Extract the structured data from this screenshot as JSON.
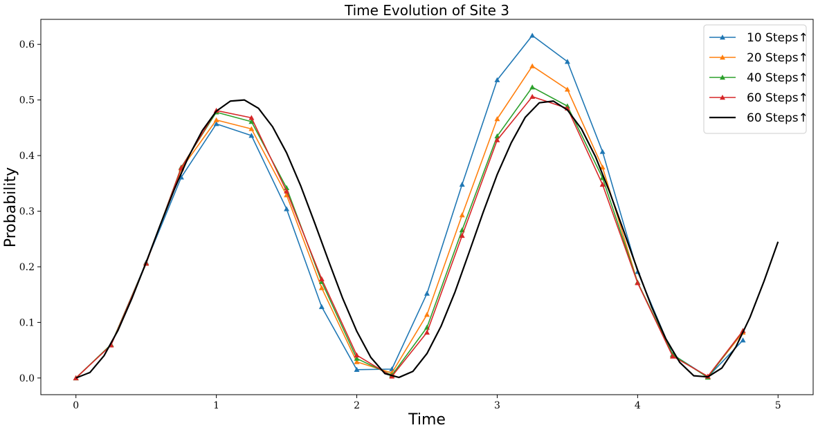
{
  "chart_data": {
    "type": "line",
    "title": "Time Evolution of Site 3",
    "xlabel": "Time",
    "ylabel": "Probability",
    "xlim": [
      -0.25,
      5.25
    ],
    "ylim": [
      -0.03,
      0.645
    ],
    "xticks": [
      0,
      1,
      2,
      3,
      4,
      5
    ],
    "xtick_labels": [
      "0",
      "1",
      "2",
      "3",
      "4",
      "5"
    ],
    "yticks": [
      0.0,
      0.1,
      0.2,
      0.3,
      0.4,
      0.5,
      0.6
    ],
    "ytick_labels": [
      "0.0",
      "0.1",
      "0.2",
      "0.3",
      "0.4",
      "0.5",
      "0.6"
    ],
    "grid": false,
    "legend_position": "top-right",
    "x": [
      0,
      0.25,
      0.5,
      0.75,
      1.0,
      1.25,
      1.5,
      1.75,
      2.0,
      2.25,
      2.5,
      2.75,
      3.0,
      3.25,
      3.5,
      3.75,
      4.0,
      4.25,
      4.5,
      4.75
    ],
    "series": [
      {
        "name": "10 Steps↑",
        "color": "#1f77b4",
        "marker": "triangle",
        "values": [
          0.0,
          0.06,
          0.208,
          0.361,
          0.457,
          0.436,
          0.304,
          0.128,
          0.015,
          0.016,
          0.152,
          0.348,
          0.536,
          0.616,
          0.569,
          0.407,
          0.191,
          0.042,
          0.002,
          0.068
        ]
      },
      {
        "name": "20 Steps↑",
        "color": "#ff7f0e",
        "marker": "triangle",
        "values": [
          0.0,
          0.06,
          0.207,
          0.376,
          0.464,
          0.448,
          0.329,
          0.162,
          0.029,
          0.009,
          0.114,
          0.293,
          0.466,
          0.561,
          0.519,
          0.379,
          0.172,
          0.04,
          0.002,
          0.082
        ]
      },
      {
        "name": "40 Steps↑",
        "color": "#2ca02c",
        "marker": "triangle",
        "values": [
          0.0,
          0.06,
          0.206,
          0.379,
          0.478,
          0.461,
          0.342,
          0.173,
          0.035,
          0.005,
          0.091,
          0.266,
          0.435,
          0.523,
          0.489,
          0.36,
          0.172,
          0.042,
          0.001,
          0.085
        ]
      },
      {
        "name": "60 Steps↑",
        "color": "#d62728",
        "marker": "triangle",
        "values": [
          0.0,
          0.059,
          0.206,
          0.378,
          0.481,
          0.468,
          0.336,
          0.178,
          0.041,
          0.003,
          0.082,
          0.256,
          0.428,
          0.506,
          0.485,
          0.348,
          0.171,
          0.039,
          0.003,
          0.085
        ]
      },
      {
        "name": "60 Steps↑",
        "color": "#000000",
        "marker": "none",
        "smooth": true,
        "x": [
          0,
          0.1,
          0.2,
          0.3,
          0.4,
          0.5,
          0.6,
          0.7,
          0.8,
          0.9,
          1.0,
          1.1,
          1.2,
          1.3,
          1.4,
          1.5,
          1.6,
          1.7,
          1.8,
          1.9,
          2.0,
          2.1,
          2.2,
          2.3,
          2.4,
          2.5,
          2.6,
          2.7,
          2.8,
          2.9,
          3.0,
          3.1,
          3.2,
          3.3,
          3.4,
          3.5,
          3.6,
          3.7,
          3.8,
          3.9,
          4.0,
          4.1,
          4.2,
          4.3,
          4.4,
          4.5,
          4.6,
          4.7,
          4.8,
          4.9,
          5.0
        ],
        "values": [
          0.0,
          0.01,
          0.04,
          0.086,
          0.144,
          0.208,
          0.275,
          0.339,
          0.397,
          0.445,
          0.48,
          0.498,
          0.5,
          0.485,
          0.452,
          0.405,
          0.346,
          0.279,
          0.21,
          0.143,
          0.084,
          0.037,
          0.008,
          0.001,
          0.012,
          0.044,
          0.093,
          0.155,
          0.226,
          0.298,
          0.366,
          0.423,
          0.469,
          0.495,
          0.498,
          0.482,
          0.448,
          0.398,
          0.335,
          0.265,
          0.194,
          0.128,
          0.071,
          0.028,
          0.004,
          0.002,
          0.018,
          0.056,
          0.109,
          0.174,
          0.245
        ]
      }
    ]
  }
}
